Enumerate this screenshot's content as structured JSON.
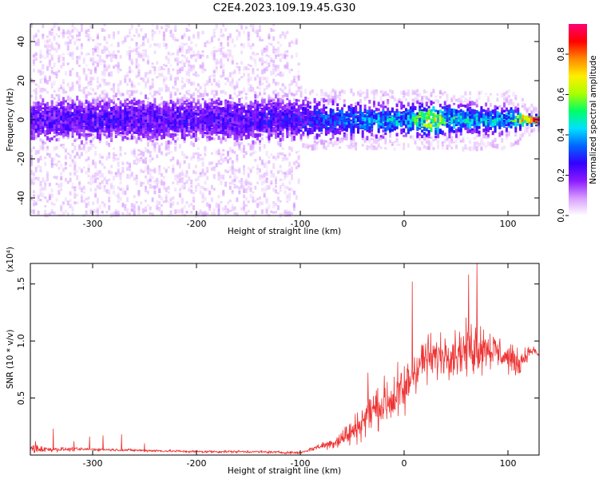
{
  "figure": {
    "title": "C2E4.2023.109.19.45.G30"
  },
  "chart_data": [
    {
      "type": "heatmap",
      "xlabel": "Height of straight line (km)",
      "ylabel": "Frequency (Hz)",
      "xlim": [
        -360,
        130
      ],
      "ylim": [
        -49,
        49
      ],
      "x_ticks": [
        -300,
        -200,
        -100,
        0,
        100
      ],
      "y_ticks": [
        -40,
        -20,
        0,
        20,
        40
      ],
      "colorbar": {
        "label": "Normalized spectral amplitude",
        "range": [
          0.0,
          0.95
        ],
        "ticks": [
          0.0,
          0.2,
          0.4,
          0.6,
          0.8
        ],
        "colormap": [
          "#ffffff",
          "#d89cff",
          "#8a1aff",
          "#3300ff",
          "#0066ff",
          "#00e0ff",
          "#00ff66",
          "#aaff00",
          "#ffee00",
          "#ff8800",
          "#ff0000",
          "#ff0077"
        ]
      },
      "band": [
        {
          "x": -360,
          "noise_halfwidth": 49,
          "core_halfwidth": 12,
          "peak_amplitude": 0.25
        },
        {
          "x": -300,
          "noise_halfwidth": 49,
          "core_halfwidth": 12,
          "peak_amplitude": 0.25
        },
        {
          "x": -200,
          "noise_halfwidth": 49,
          "core_halfwidth": 12,
          "peak_amplitude": 0.25
        },
        {
          "x": -105,
          "noise_halfwidth": 49,
          "core_halfwidth": 12,
          "peak_amplitude": 0.27
        },
        {
          "x": -100,
          "noise_halfwidth": 15,
          "core_halfwidth": 10,
          "peak_amplitude": 0.3
        },
        {
          "x": -50,
          "noise_halfwidth": 15,
          "core_halfwidth": 8,
          "peak_amplitude": 0.4
        },
        {
          "x": 0,
          "noise_halfwidth": 15,
          "core_halfwidth": 7,
          "peak_amplitude": 0.45
        },
        {
          "x": 25,
          "noise_halfwidth": 15,
          "core_halfwidth": 7,
          "peak_amplitude": 0.7
        },
        {
          "x": 50,
          "noise_halfwidth": 15,
          "core_halfwidth": 7,
          "peak_amplitude": 0.45
        },
        {
          "x": 100,
          "noise_halfwidth": 15,
          "core_halfwidth": 6,
          "peak_amplitude": 0.45
        },
        {
          "x": 120,
          "noise_halfwidth": 8,
          "core_halfwidth": 2,
          "peak_amplitude": 0.9
        },
        {
          "x": 130,
          "noise_halfwidth": 5,
          "core_halfwidth": 2,
          "peak_amplitude": 0.9
        }
      ]
    },
    {
      "type": "line",
      "xlabel": "Height of straight line (km)",
      "ylabel": "SNR (10 * v/v)",
      "y_multiplier": "(x10⁴)",
      "xlim": [
        -360,
        130
      ],
      "ylim": [
        0,
        1.68
      ],
      "x_ticks": [
        -300,
        -200,
        -100,
        0,
        100
      ],
      "y_ticks": [
        0.5,
        1.0,
        1.5
      ],
      "y_tick_labels": [
        "0.5",
        "1.0",
        "1.5"
      ],
      "grid": false,
      "color": "#ee3333",
      "series": [
        {
          "x": [
            -360,
            -345,
            -330,
            -300,
            -250,
            -200,
            -150,
            -100,
            -90,
            -80,
            -70,
            -60,
            -50,
            -40,
            -30,
            -20,
            -10,
            0,
            10,
            20,
            30,
            40,
            50,
            60,
            70,
            80,
            90,
            100,
            110,
            120,
            125,
            130
          ],
          "y": [
            0.06,
            0.05,
            0.05,
            0.05,
            0.04,
            0.03,
            0.03,
            0.02,
            0.05,
            0.08,
            0.1,
            0.15,
            0.2,
            0.3,
            0.4,
            0.45,
            0.5,
            0.55,
            0.75,
            0.85,
            0.85,
            0.9,
            0.9,
            0.92,
            0.95,
            0.95,
            0.9,
            0.85,
            0.8,
            0.9,
            0.92,
            0.87
          ],
          "spread": [
            0.08,
            0.04,
            0.03,
            0.02,
            0.02,
            0.02,
            0.02,
            0.02,
            0.03,
            0.05,
            0.08,
            0.15,
            0.2,
            0.25,
            0.3,
            0.35,
            0.4,
            0.4,
            0.35,
            0.35,
            0.3,
            0.3,
            0.35,
            0.35,
            0.4,
            0.3,
            0.25,
            0.2,
            0.2,
            0.08,
            0.05,
            0.02
          ],
          "spikes": [
            {
              "x": -355,
              "y": 0.12
            },
            {
              "x": -338,
              "y": 0.23
            },
            {
              "x": -318,
              "y": 0.12
            },
            {
              "x": -303,
              "y": 0.16
            },
            {
              "x": -290,
              "y": 0.17
            },
            {
              "x": -272,
              "y": 0.18
            },
            {
              "x": -250,
              "y": 0.1
            },
            {
              "x": -35,
              "y": 0.72
            },
            {
              "x": 8,
              "y": 1.52
            },
            {
              "x": 70,
              "y": 1.68
            },
            {
              "x": 62,
              "y": 1.58
            }
          ]
        }
      ]
    }
  ]
}
